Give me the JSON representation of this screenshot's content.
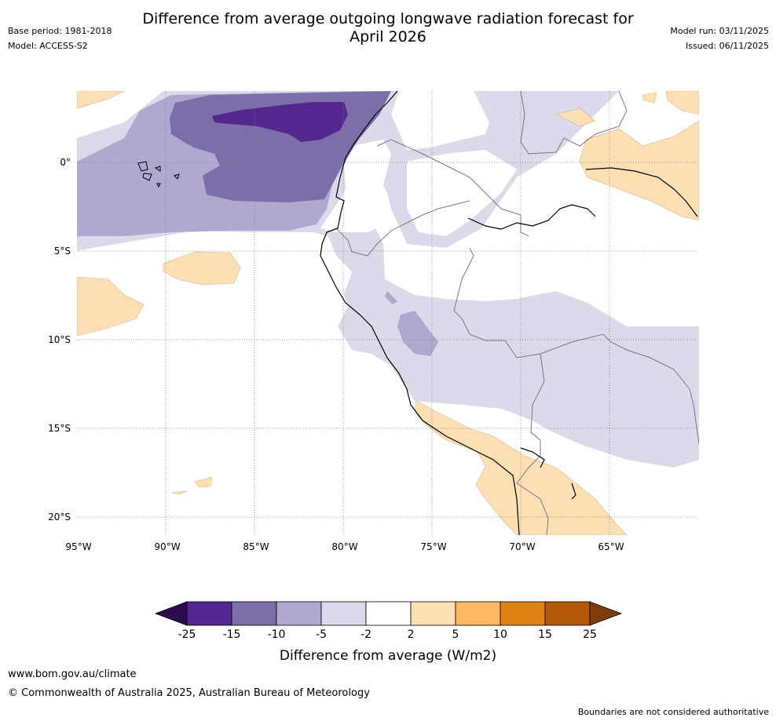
{
  "header": {
    "title_line1": "Difference from average outgoing longwave radiation forecast for",
    "title_line2": "April 2026",
    "base_period": "Base period: 1981-2018",
    "model": "Model: ACCESS-S2",
    "model_run": "Model run: 03/11/2025",
    "issued": "Issued: 06/11/2025"
  },
  "map": {
    "lat_labels": [
      "0°",
      "5°S",
      "10°S",
      "15°S",
      "20°S"
    ],
    "lon_labels": [
      "95°W",
      "90°W",
      "85°W",
      "80°W",
      "75°W",
      "70°W",
      "65°W"
    ]
  },
  "colorbar": {
    "ticks": [
      "-25",
      "-15",
      "-10",
      "-5",
      "-2",
      "2",
      "5",
      "10",
      "15",
      "25"
    ],
    "colors": [
      "#54278f",
      "#7c6ea8",
      "#afa9d0",
      "#dadaea",
      "#ffffff",
      "#fddfb4",
      "#fdb863",
      "#e08214",
      "#b35806"
    ],
    "under_color": "#2d0a4f",
    "over_color": "#7f3b08",
    "label": "Difference from average (W/m2)"
  },
  "footer": {
    "url": "www.bom.gov.au/climate",
    "copyright": "© Commonwealth of Australia 2025, Australian Bureau of Meteorology",
    "disclaimer": "Boundaries are not considered authoritative"
  }
}
